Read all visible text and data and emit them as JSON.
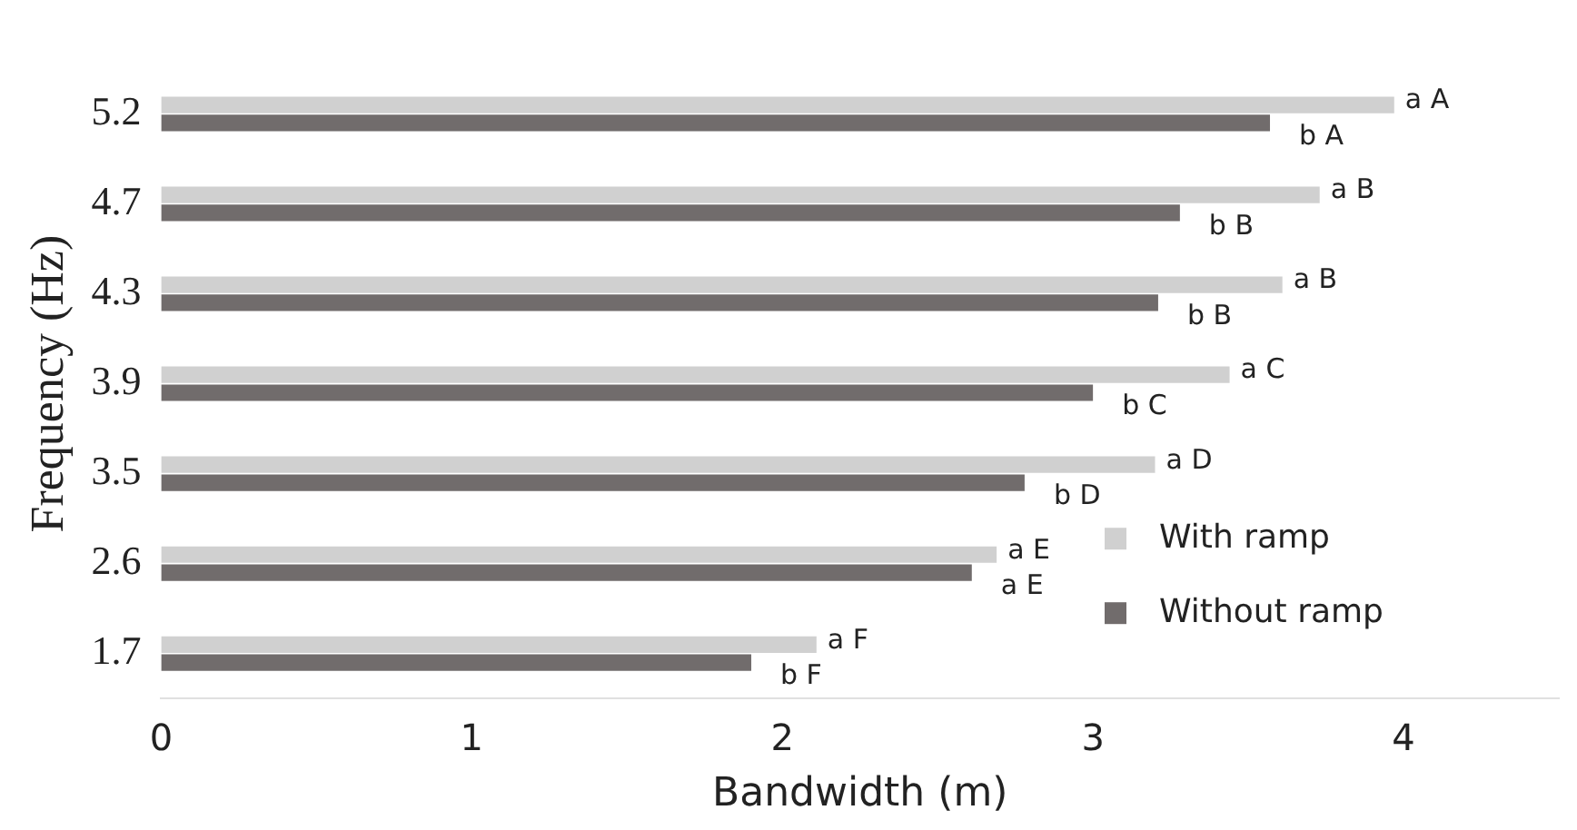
{
  "chart_data": {
    "type": "bar",
    "orientation": "horizontal",
    "xlabel": "Bandwidth (m)",
    "ylabel": "Frequency (Hz)",
    "categories": [
      "5.2",
      "4.7",
      "4.3",
      "3.9",
      "3.5",
      "2.6",
      "1.7"
    ],
    "series": [
      {
        "name": "With ramp",
        "color": "#d0d0d0",
        "values": [
          3.97,
          3.73,
          3.61,
          3.44,
          3.2,
          2.69,
          2.11
        ],
        "value_labels": [
          "a A",
          "a B",
          "a B",
          "a C",
          "a D",
          "a E",
          "a F"
        ]
      },
      {
        "name": "Without ramp",
        "color": "#716c6c",
        "values": [
          3.57,
          3.28,
          3.21,
          3.0,
          2.78,
          2.61,
          1.9
        ],
        "value_labels": [
          "b A",
          "b B",
          "b B",
          "b C",
          "b D",
          "a E",
          "b F"
        ]
      }
    ],
    "xlim": [
      0,
      4.5
    ],
    "xticks": [
      0,
      1,
      2,
      3,
      4
    ],
    "grid": false,
    "legend": "bottom right"
  }
}
